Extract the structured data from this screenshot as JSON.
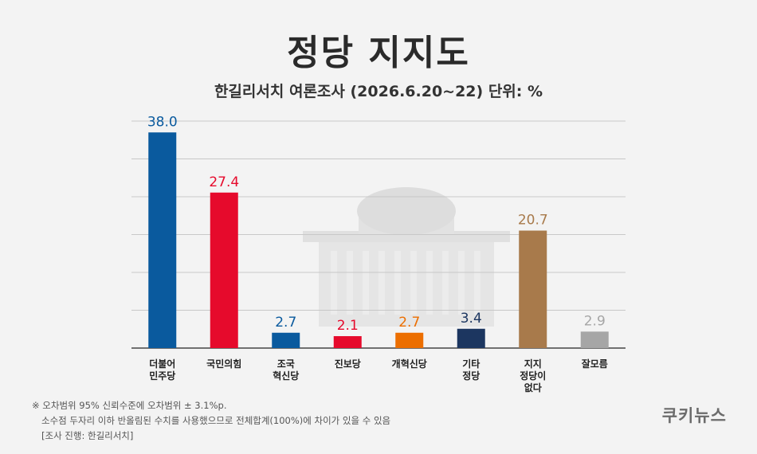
{
  "title": "정당 지지도",
  "subtitle": "한길리서치 여론조사 (2026.6.20~22) 단위: %",
  "notes": {
    "line1": "※ 오차범위 95% 신뢰수준에 오차범위 ± 3.1%p.",
    "line2": "소수점 두자리 이하 반올림된 수치를 사용했으므로 전체합계(100%)에 차이가 있을 수 있음",
    "line3": "[조사 진행: 한길리서치]"
  },
  "logo": "쿠키뉴스",
  "chart_data": {
    "type": "bar",
    "title": "정당 지지도",
    "subtitle": "한길리서치 여론조사 (2026.6.20~22) 단위: %",
    "ylim": [
      0,
      40
    ],
    "grid": true,
    "categories": [
      [
        "더불어",
        "민주당"
      ],
      [
        "국민의힘"
      ],
      [
        "조국",
        "혁신당"
      ],
      [
        "진보당"
      ],
      [
        "개혁신당"
      ],
      [
        "기타",
        "정당"
      ],
      [
        "지지",
        "정당이",
        "없다"
      ],
      [
        "잘모름"
      ]
    ],
    "values": [
      38.0,
      27.4,
      2.7,
      2.1,
      2.7,
      3.4,
      20.7,
      2.9
    ],
    "value_labels": [
      "38.0",
      "27.4",
      "2.7",
      "2.1",
      "2.7",
      "3.4",
      "20.7",
      "2.9"
    ],
    "colors": [
      "#0a5a9e",
      "#e60a2c",
      "#0a5a9e",
      "#e60a2c",
      "#ec6e00",
      "#1c3660",
      "#a87a4b",
      "#a6a6a6"
    ]
  }
}
